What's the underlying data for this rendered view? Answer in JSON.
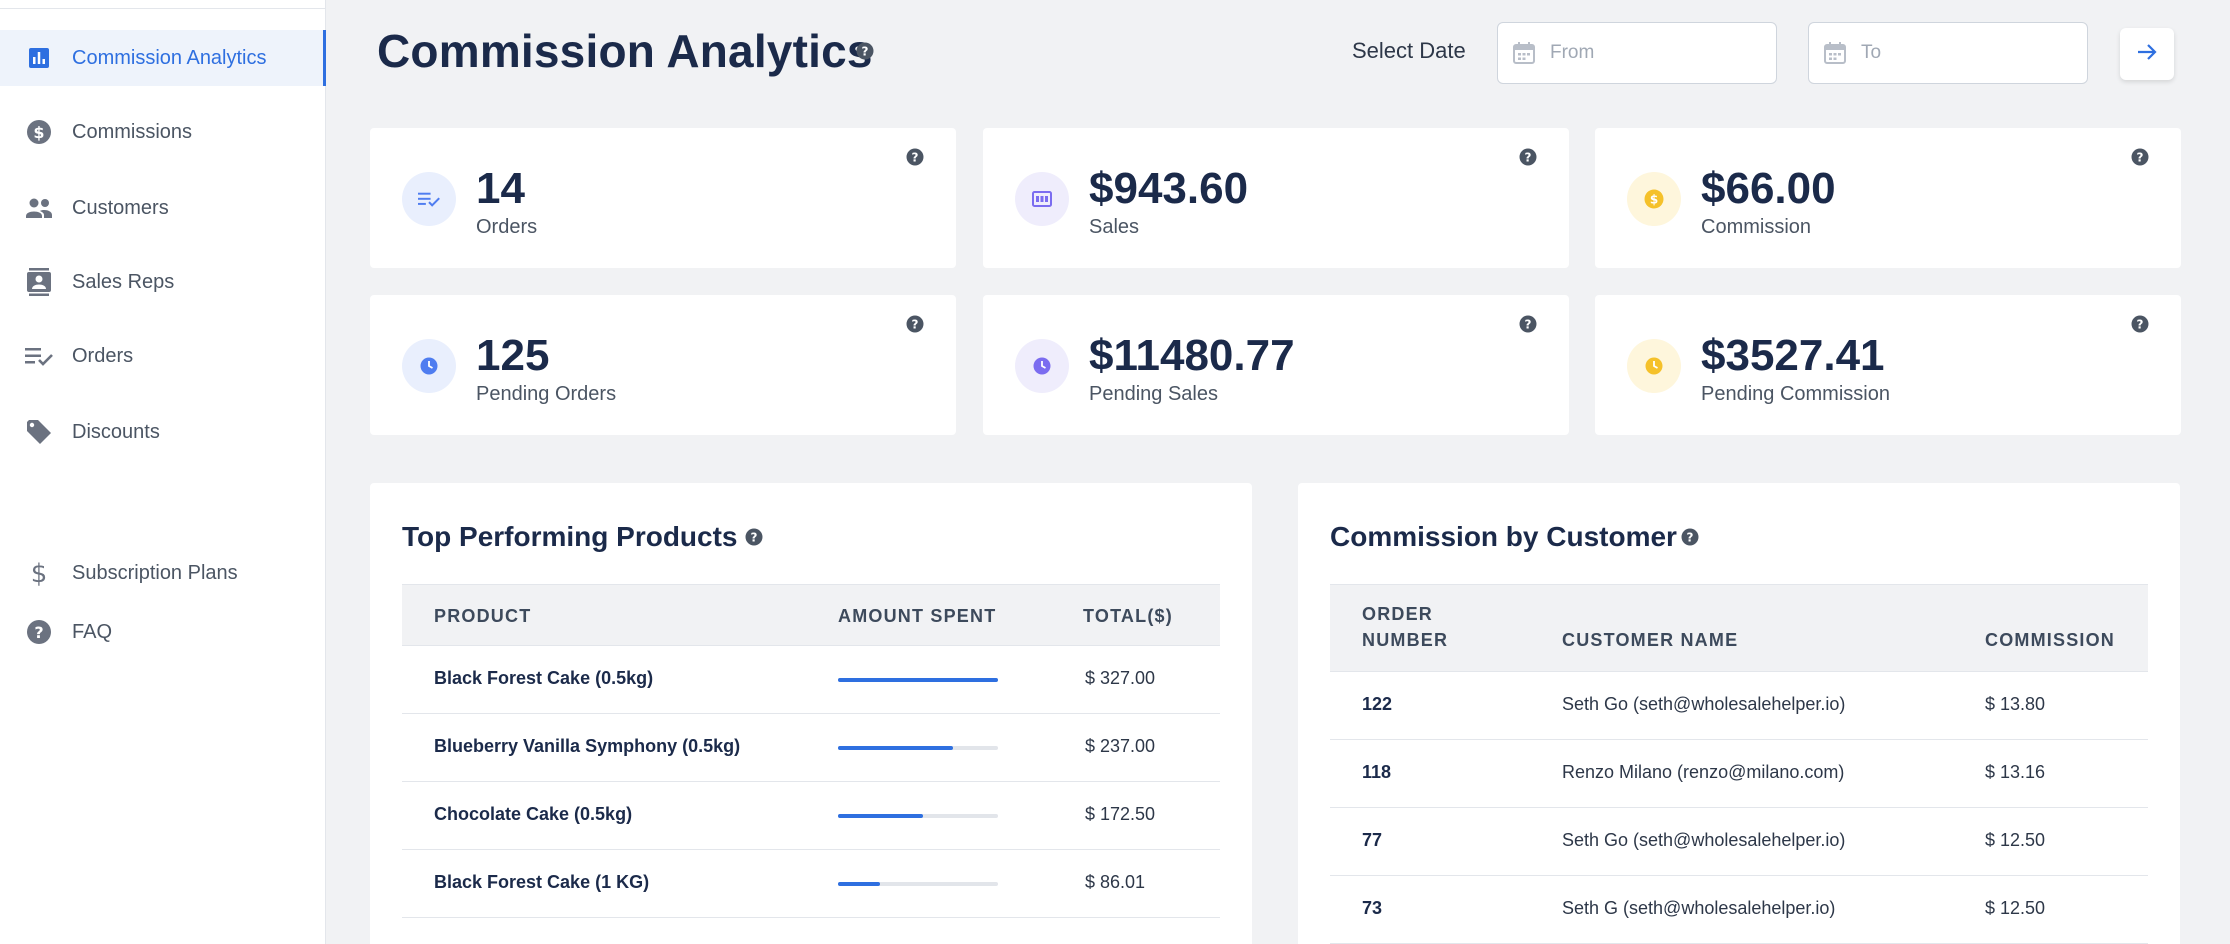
{
  "sidebar": {
    "items": [
      {
        "label": "Commission Analytics",
        "icon": "bar-chart-icon",
        "active": true
      },
      {
        "label": "Commissions",
        "icon": "dollar-circle-icon"
      },
      {
        "label": "Customers",
        "icon": "people-icon"
      },
      {
        "label": "Sales Reps",
        "icon": "contact-card-icon"
      },
      {
        "label": "Orders",
        "icon": "list-check-icon"
      },
      {
        "label": "Discounts",
        "icon": "tag-icon"
      },
      {
        "label": "Subscription Plans",
        "icon": "dollar-sign-icon"
      },
      {
        "label": "FAQ",
        "icon": "question-circle-icon"
      }
    ]
  },
  "header": {
    "title": "Commission Analytics",
    "select_date_label": "Select Date",
    "from_placeholder": "From",
    "to_placeholder": "To"
  },
  "stats": [
    {
      "value": "14",
      "label": "Orders",
      "icon": "list-check-icon",
      "color": "#4f7df0",
      "bg": "#e9effd"
    },
    {
      "value": "$943.60",
      "label": "Sales",
      "icon": "receipt-icon",
      "color": "#7b6cf0",
      "bg": "#efedfc"
    },
    {
      "value": "$66.00",
      "label": "Commission",
      "icon": "coin-icon",
      "color": "#f5c12a",
      "bg": "#fef6dc"
    },
    {
      "value": "125",
      "label": "Pending Orders",
      "icon": "clock-icon",
      "color": "#4f7df0",
      "bg": "#e9effd"
    },
    {
      "value": "$11480.77",
      "label": "Pending Sales",
      "icon": "clock-icon",
      "color": "#7b6cf0",
      "bg": "#efedfc"
    },
    {
      "value": "$3527.41",
      "label": "Pending Commission",
      "icon": "clock-icon",
      "color": "#f5c12a",
      "bg": "#fef6dc"
    }
  ],
  "top_products": {
    "title": "Top Performing Products",
    "columns": [
      "PRODUCT",
      "AMOUNT SPENT",
      "TOTAL($)"
    ],
    "rows": [
      {
        "product": "Black Forest Cake (0.5kg)",
        "share": 1.0,
        "total": "$ 327.00"
      },
      {
        "product": "Blueberry Vanilla Symphony (0.5kg)",
        "share": 0.72,
        "total": "$ 237.00"
      },
      {
        "product": "Chocolate Cake (0.5kg)",
        "share": 0.53,
        "total": "$ 172.50"
      },
      {
        "product": "Black Forest Cake (1 KG)",
        "share": 0.26,
        "total": "$ 86.01"
      }
    ]
  },
  "commission_by_customer": {
    "title": "Commission by Customer",
    "columns": [
      "ORDER\nNUMBER",
      "CUSTOMER NAME",
      "COMMISSION"
    ],
    "rows": [
      {
        "order": "122",
        "customer": "Seth Go (seth@wholesalehelper.io)",
        "commission": "$ 13.80"
      },
      {
        "order": "118",
        "customer": "Renzo Milano (renzo@milano.com)",
        "commission": "$ 13.16"
      },
      {
        "order": "77",
        "customer": "Seth Go (seth@wholesalehelper.io)",
        "commission": "$ 12.50"
      },
      {
        "order": "73",
        "customer": "Seth G (seth@wholesalehelper.io)",
        "commission": "$ 12.50"
      }
    ]
  },
  "colors": {
    "accent": "#2e6fe0",
    "text_dark": "#1b2a4a"
  }
}
